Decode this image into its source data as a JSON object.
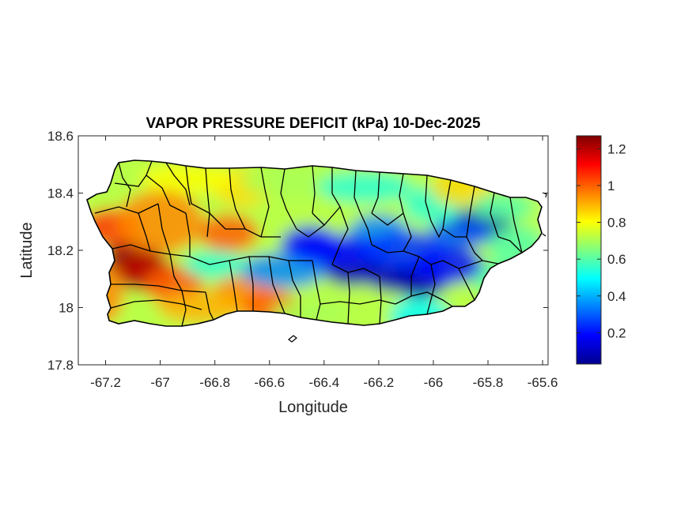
{
  "chart_data": {
    "type": "heatmap",
    "title": "VAPOR PRESSURE DEFICIT (kPa) 10-Dec-2025",
    "xlabel": "Longitude",
    "ylabel": "Latitude",
    "xlim": [
      -67.3,
      -65.58
    ],
    "ylim": [
      17.8,
      18.6
    ],
    "xticks": [
      -67.2,
      -67,
      -66.8,
      -66.6,
      -66.4,
      -66.2,
      -66,
      -65.8,
      -65.6
    ],
    "xtick_labels": [
      "-67.2",
      "-67",
      "-66.8",
      "-66.6",
      "-66.4",
      "-66.2",
      "-66",
      "-65.8",
      "-65.6"
    ],
    "yticks": [
      17.8,
      18,
      18.2,
      18.4,
      18.6
    ],
    "ytick_labels": [
      "17.8",
      "18",
      "18.2",
      "18.4",
      "18.6"
    ],
    "grid": false,
    "colormap": "jet",
    "colorbar": {
      "clim": [
        0.03,
        1.27
      ],
      "ticks": [
        0.2,
        0.4,
        0.6,
        0.8,
        1,
        1.2
      ],
      "tick_labels": [
        "0.2",
        "0.4",
        "0.6",
        "0.8",
        "1",
        "1.2"
      ]
    },
    "value_features": [
      {
        "lon": -67.1,
        "lat": 18.17,
        "value": 1.25
      },
      {
        "lon": -67.05,
        "lat": 18.12,
        "value": 1.2
      },
      {
        "lon": -67.18,
        "lat": 18.28,
        "value": 1.05
      },
      {
        "lon": -66.95,
        "lat": 18.08,
        "value": 1.0
      },
      {
        "lon": -66.7,
        "lat": 18.05,
        "value": 0.95
      },
      {
        "lon": -66.75,
        "lat": 18.26,
        "value": 1.0
      },
      {
        "lon": -66.6,
        "lat": 18.0,
        "value": 1.0
      },
      {
        "lon": -66.7,
        "lat": 18.42,
        "value": 0.85
      },
      {
        "lon": -66.45,
        "lat": 18.22,
        "value": 0.2
      },
      {
        "lon": -66.3,
        "lat": 18.14,
        "value": 0.1
      },
      {
        "lon": -66.15,
        "lat": 18.12,
        "value": 0.1
      },
      {
        "lon": -66.05,
        "lat": 18.1,
        "value": 0.08
      },
      {
        "lon": -65.82,
        "lat": 18.29,
        "value": 0.05
      },
      {
        "lon": -66.2,
        "lat": 18.26,
        "value": 0.35
      },
      {
        "lon": -66.0,
        "lat": 18.36,
        "value": 0.55
      },
      {
        "lon": -65.9,
        "lat": 18.42,
        "value": 0.85
      },
      {
        "lon": -66.05,
        "lat": 17.97,
        "value": 0.5
      },
      {
        "lon": -65.75,
        "lat": 18.1,
        "value": 0.6
      }
    ]
  }
}
